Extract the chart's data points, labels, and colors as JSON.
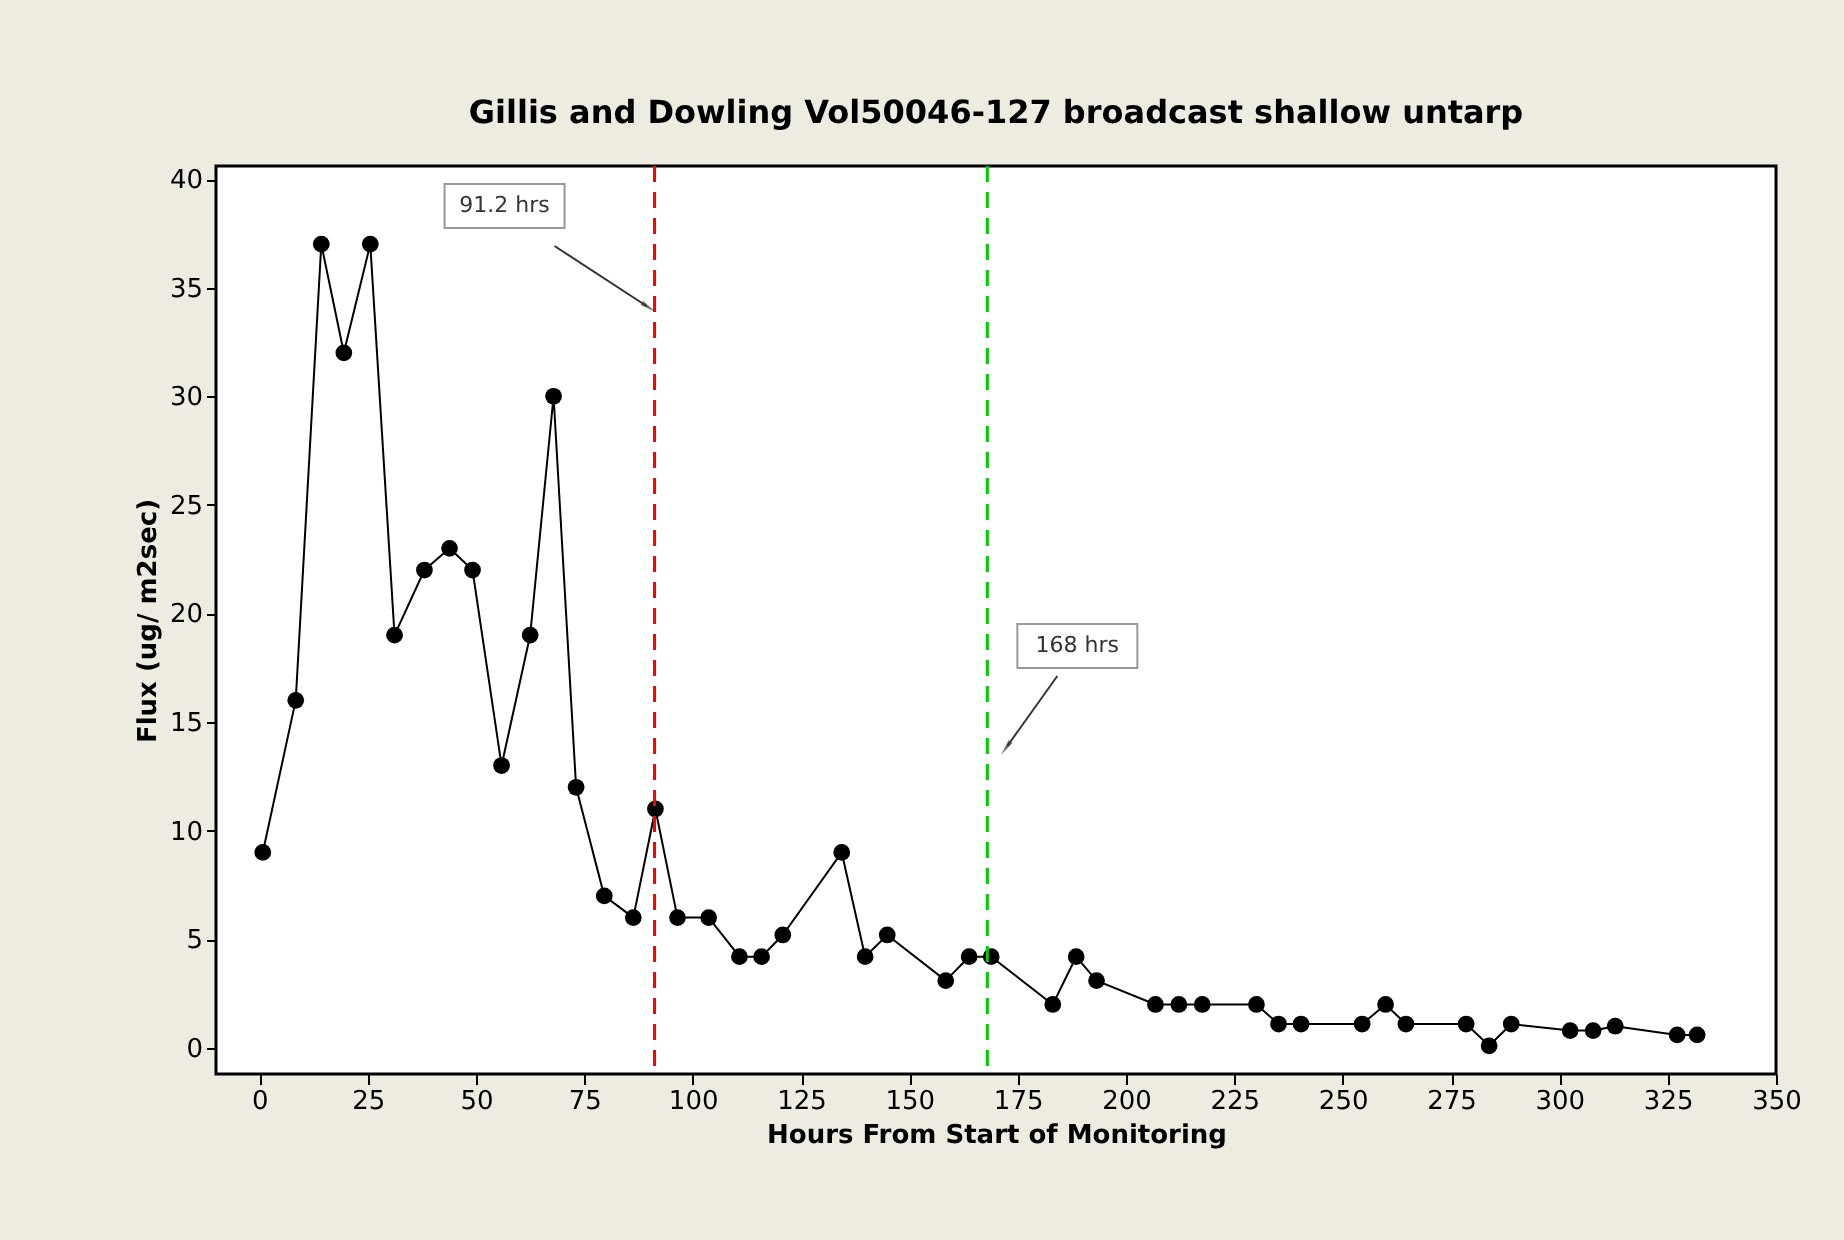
{
  "chart_data": {
    "type": "line",
    "title": "Gillis and Dowling Vol50046-127 broadcast shallow untarp",
    "xlabel": "Hours From Start of Monitoring",
    "ylabel": "Flux (ug/ m2sec)",
    "x": [
      0.8,
      8.4,
      14.3,
      19.5,
      25.6,
      31.2,
      38.1,
      43.9,
      49.2,
      55.9,
      62.5,
      67.9,
      73.1,
      79.6,
      86.3,
      91.4,
      96.5,
      103.7,
      110.8,
      115.9,
      120.8,
      134.4,
      139.8,
      144.9,
      158.4,
      163.8,
      168.9,
      183.1,
      188.5,
      193.2,
      206.8,
      212.2,
      217.6,
      230.1,
      235.2,
      240.4,
      254.5,
      259.9,
      264.6,
      278.5,
      283.8,
      288.9,
      302.5,
      307.8,
      312.9,
      327.2,
      331.8
    ],
    "series": [
      {
        "color": "#000000",
        "values": [
          9,
          16,
          37,
          32,
          37,
          19,
          22,
          23,
          22,
          13,
          19,
          30,
          12,
          7,
          6,
          11,
          6,
          6,
          4.2,
          4.2,
          5.2,
          9,
          4.2,
          5.2,
          3.1,
          4.2,
          4.2,
          2,
          4.2,
          3.1,
          2,
          2,
          2,
          2,
          1.1,
          1.1,
          1.1,
          2,
          1.1,
          1.1,
          0.1,
          1.1,
          0.8,
          0.8,
          1,
          0.6,
          0.6
        ]
      }
    ],
    "xlim": [
      -10,
      350
    ],
    "xticks": [
      0,
      25,
      50,
      75,
      100,
      125,
      150,
      175,
      200,
      225,
      250,
      275,
      300,
      325,
      350
    ],
    "ylim": [
      -1.2,
      40.6
    ],
    "yticks": [
      0,
      5,
      10,
      15,
      20,
      25,
      30,
      35,
      40
    ],
    "ref_lines": [
      {
        "axis": "x",
        "value": 91.2,
        "label": "91.2 hrs",
        "color": "#ff0000",
        "line_style": "dashed"
      },
      {
        "axis": "x",
        "value": 168,
        "label": "168 hrs",
        "color": "#00cc00",
        "line_style": "dashed"
      }
    ],
    "grid": false,
    "marker": "circle",
    "line_style": "solid"
  }
}
